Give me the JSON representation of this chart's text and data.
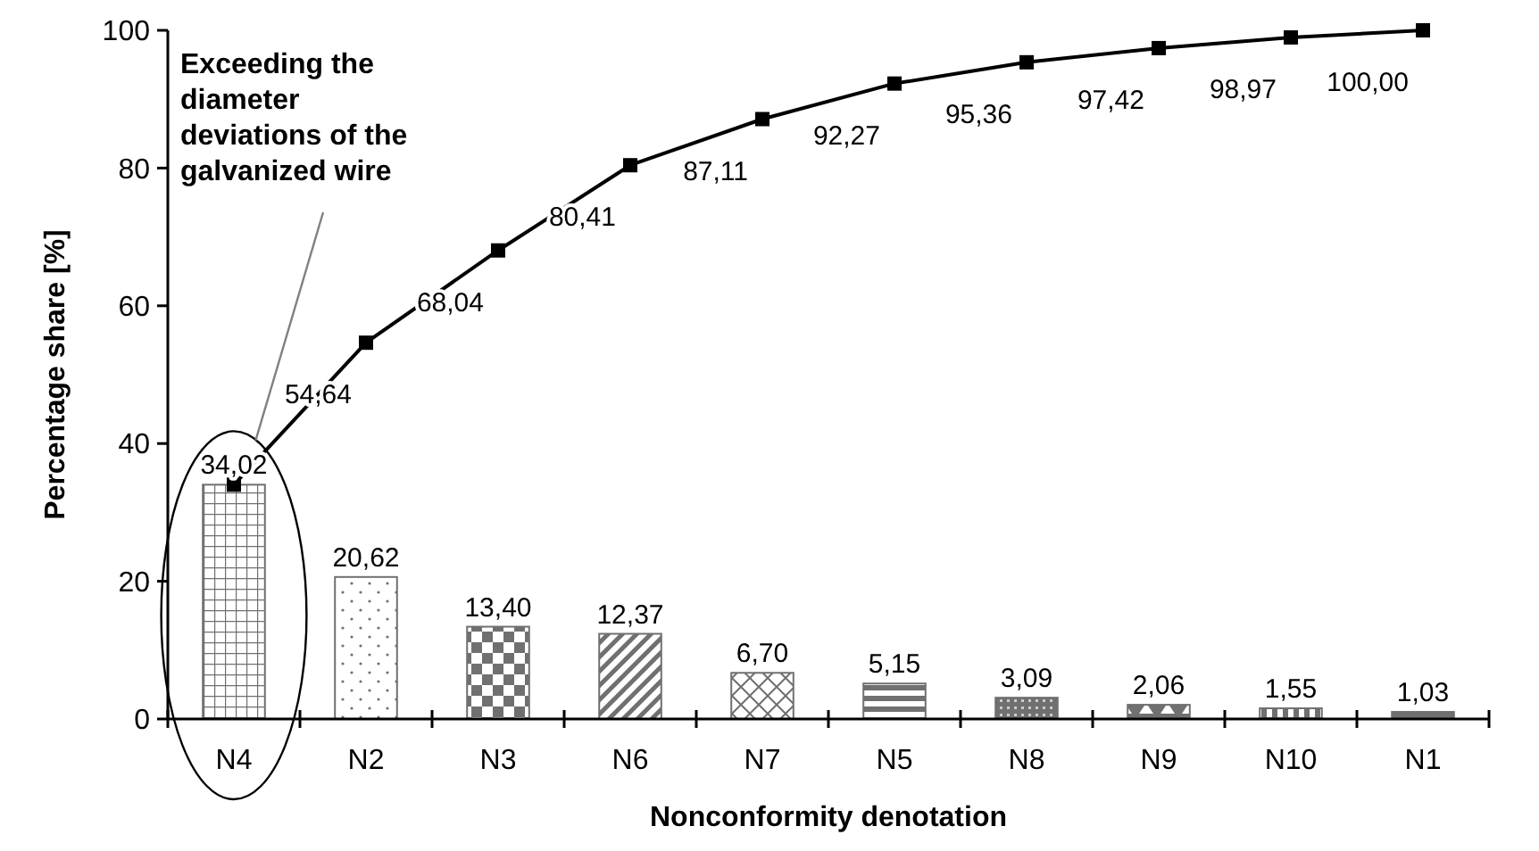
{
  "chart_data": {
    "type": "bar",
    "xlabel": "Nonconformity denotation",
    "ylabel": "Percentage share [%]",
    "categories": [
      "N4",
      "N2",
      "N3",
      "N6",
      "N7",
      "N5",
      "N8",
      "N9",
      "N10",
      "N1"
    ],
    "series": [
      {
        "color": "#707070",
        "values": [
          34.02,
          20.62,
          13.4,
          12.37,
          6.7,
          5.15,
          3.09,
          2.06,
          1.55,
          1.03
        ],
        "value_labels": [
          "34,02",
          "20,62",
          "13,40",
          "12,37",
          "6,70",
          "5,15",
          "3,09",
          "2,06",
          "1,55",
          "1,03"
        ]
      },
      {
        "type": "line",
        "color": "#000000",
        "marker": "square",
        "line_style": "solid",
        "values": [
          34.02,
          54.64,
          68.04,
          80.41,
          87.11,
          92.27,
          95.36,
          97.42,
          98.97,
          100.0
        ],
        "value_labels": [
          null,
          "54,64",
          "68,04",
          "80,41",
          "87,11",
          "92,27",
          "95,36",
          "97,42",
          "98,97",
          "100,00"
        ]
      }
    ],
    "ylim": [
      0,
      100
    ],
    "yticks": [
      0,
      20,
      40,
      60,
      80,
      100
    ],
    "grid": false,
    "annotations": [
      "Exceeding the diameter deviations of the galvanized wire"
    ]
  }
}
